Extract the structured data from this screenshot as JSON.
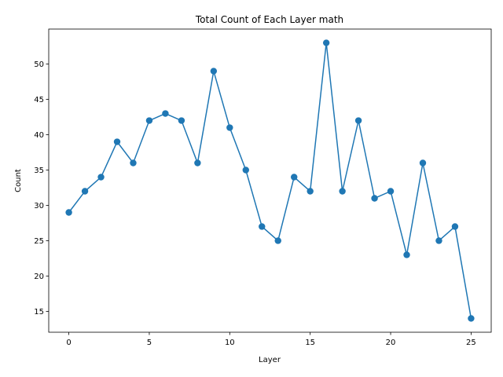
{
  "chart_data": {
    "type": "line",
    "title": "Total Count of Each Layer math",
    "xlabel": "Layer",
    "ylabel": "Count",
    "x": [
      0,
      1,
      2,
      3,
      4,
      5,
      6,
      7,
      8,
      9,
      10,
      11,
      12,
      13,
      14,
      15,
      16,
      17,
      18,
      19,
      20,
      21,
      22,
      23,
      24,
      25
    ],
    "series": [
      {
        "values": [
          29,
          32,
          34,
          39,
          36,
          42,
          43,
          42,
          36,
          49,
          41,
          35,
          27,
          25,
          34,
          32,
          53,
          32,
          42,
          31,
          32,
          23,
          36,
          25,
          27,
          14
        ],
        "color": "#1f77b4",
        "marker": "circle"
      }
    ],
    "xlim": [
      -1.25,
      26.25
    ],
    "ylim": [
      12.05,
      54.95
    ],
    "xticks": [
      0,
      5,
      10,
      15,
      20,
      25
    ],
    "yticks": [
      15,
      20,
      25,
      30,
      35,
      40,
      45,
      50
    ],
    "grid": false,
    "legend": "none"
  }
}
